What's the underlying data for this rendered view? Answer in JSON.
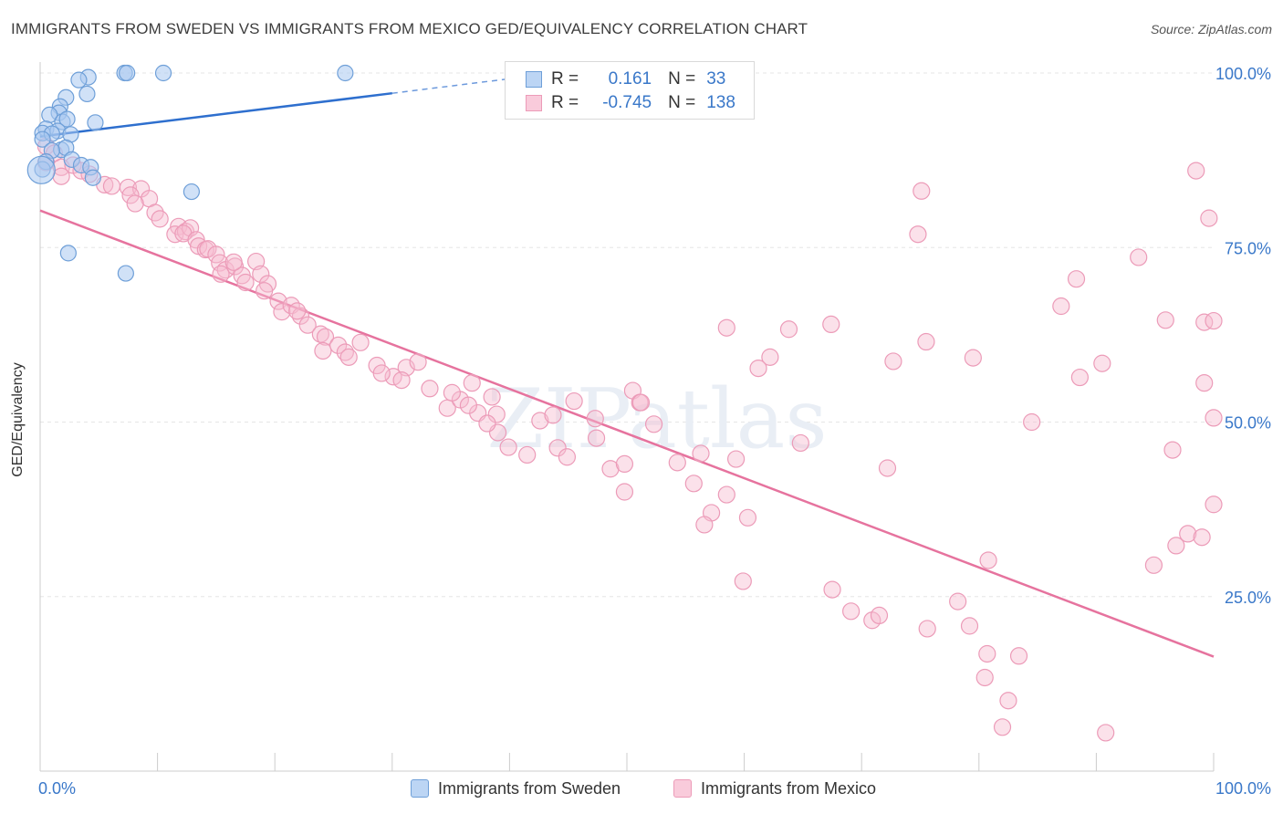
{
  "title": "IMMIGRANTS FROM SWEDEN VS IMMIGRANTS FROM MEXICO GED/EQUIVALENCY CORRELATION CHART",
  "source": "Source: ZipAtlas.com",
  "legend_top": {
    "rows": [
      {
        "r_label": "R =",
        "r_value": "0.161",
        "n_label": "N =",
        "n_value": "33"
      },
      {
        "r_label": "R =",
        "r_value": "-0.745",
        "n_label": "N =",
        "n_value": "138"
      }
    ]
  },
  "colors": {
    "sweden_fill": "#a9c8f0",
    "sweden_stroke": "#6e9fd8",
    "sweden_line": "#2e6fce",
    "mexico_fill": "#f7bdd0",
    "mexico_stroke": "#ec9bb8",
    "mexico_line": "#e6739e",
    "tick_label": "#3a78c9",
    "grid": "#e6e6e6"
  },
  "chart_data": {
    "type": "scatter",
    "ylabel": "GED/Equivalency",
    "xlim": [
      0,
      100
    ],
    "ylim": [
      0,
      100
    ],
    "x_tick_labels": [
      {
        "x": 0,
        "label": "0.0%"
      },
      {
        "x": 100,
        "label": "100.0%"
      }
    ],
    "y_tick_labels": [
      {
        "y": 25,
        "label": "25.0%"
      },
      {
        "y": 50,
        "label": "50.0%"
      },
      {
        "y": 75,
        "label": "75.0%"
      },
      {
        "y": 100,
        "label": "100.0%"
      }
    ],
    "grid": true,
    "series": [
      {
        "name": "Immigrants from Sweden",
        "trend": {
          "x0": 0,
          "y0": 90.9,
          "x1": 30,
          "y1": 97.1,
          "dashed_to_x": 43,
          "dashed_to_y": 99.8
        },
        "points": [
          [
            7.2,
            100
          ],
          [
            7.4,
            100
          ],
          [
            10.5,
            100
          ],
          [
            26,
            100
          ],
          [
            4.1,
            99.4
          ],
          [
            3.3,
            99
          ],
          [
            2.2,
            96.5
          ],
          [
            4,
            97
          ],
          [
            1.7,
            95.2
          ],
          [
            1.6,
            94.3
          ],
          [
            0.8,
            94
          ],
          [
            1.9,
            93
          ],
          [
            2.3,
            93.4
          ],
          [
            4.7,
            92.9
          ],
          [
            0.5,
            92
          ],
          [
            1.5,
            91.7
          ],
          [
            0.2,
            91.4
          ],
          [
            1,
            91.3
          ],
          [
            2.6,
            91.2
          ],
          [
            0.2,
            90.5
          ],
          [
            1.8,
            89
          ],
          [
            2.2,
            89.3
          ],
          [
            1,
            88.9
          ],
          [
            2.7,
            87.6
          ],
          [
            0.5,
            87.3
          ],
          [
            3.5,
            86.8
          ],
          [
            4.3,
            86.5
          ],
          [
            0.2,
            86.2
          ],
          [
            4.5,
            85
          ],
          [
            12.9,
            83
          ],
          [
            2.4,
            74.2
          ],
          [
            7.3,
            71.3
          ],
          [
            0.1,
            86.1
          ]
        ]
      },
      {
        "name": "Immigrants from Mexico",
        "trend": {
          "x0": 0,
          "y0": 80.3,
          "x1": 100,
          "y1": 16.4
        },
        "points": [
          [
            0.5,
            89.5
          ],
          [
            1.2,
            88.5
          ],
          [
            0.5,
            87.2
          ],
          [
            1.8,
            86.5
          ],
          [
            2.8,
            86.8
          ],
          [
            3.5,
            86
          ],
          [
            4.2,
            85.5
          ],
          [
            1.8,
            85.2
          ],
          [
            5.5,
            84
          ],
          [
            6.1,
            83.8
          ],
          [
            7.5,
            83.6
          ],
          [
            8.6,
            83.4
          ],
          [
            7.7,
            82.5
          ],
          [
            9.3,
            82
          ],
          [
            8.1,
            81.3
          ],
          [
            9.8,
            80
          ],
          [
            10.2,
            79.1
          ],
          [
            11.8,
            78
          ],
          [
            11.5,
            76.9
          ],
          [
            12.4,
            77.3
          ],
          [
            12.8,
            77.8
          ],
          [
            12.2,
            77
          ],
          [
            13.3,
            76.1
          ],
          [
            13.5,
            75.2
          ],
          [
            14.1,
            74.7
          ],
          [
            14.3,
            74.8
          ],
          [
            15,
            74
          ],
          [
            15.3,
            72.8
          ],
          [
            15.8,
            71.8
          ],
          [
            16.6,
            72.3
          ],
          [
            15.4,
            71.2
          ],
          [
            17.2,
            71
          ],
          [
            16.5,
            72.9
          ],
          [
            18.4,
            73
          ],
          [
            18.8,
            71.2
          ],
          [
            19.4,
            69.8
          ],
          [
            17.5,
            70
          ],
          [
            19.1,
            68.8
          ],
          [
            20.3,
            67.3
          ],
          [
            20.6,
            65.8
          ],
          [
            21.4,
            66.7
          ],
          [
            22.2,
            65.2
          ],
          [
            22.8,
            63.9
          ],
          [
            21.9,
            65.9
          ],
          [
            23.9,
            62.6
          ],
          [
            24.3,
            62.2
          ],
          [
            25.4,
            61
          ],
          [
            24.1,
            60.2
          ],
          [
            26,
            60
          ],
          [
            27.3,
            61.4
          ],
          [
            28.7,
            58.1
          ],
          [
            26.3,
            59.3
          ],
          [
            30.1,
            56.5
          ],
          [
            29.1,
            57
          ],
          [
            31.2,
            57.8
          ],
          [
            30.8,
            56
          ],
          [
            32.2,
            58.6
          ],
          [
            33.2,
            54.8
          ],
          [
            34.7,
            52
          ],
          [
            35.8,
            53.2
          ],
          [
            37.3,
            51.3
          ],
          [
            36.5,
            52.4
          ],
          [
            35.1,
            54.2
          ],
          [
            36.8,
            55.6
          ],
          [
            38.5,
            53.6
          ],
          [
            38.9,
            51.1
          ],
          [
            39,
            48.5
          ],
          [
            38.1,
            49.8
          ],
          [
            39.9,
            46.4
          ],
          [
            41.5,
            45.3
          ],
          [
            42.6,
            50.2
          ],
          [
            43.7,
            51
          ],
          [
            44.1,
            46.3
          ],
          [
            44.9,
            45
          ],
          [
            47.3,
            50.5
          ],
          [
            45.5,
            53
          ],
          [
            48.6,
            43.3
          ],
          [
            47.4,
            47.7
          ],
          [
            49.8,
            40
          ],
          [
            50.5,
            54.5
          ],
          [
            51.1,
            52.8
          ],
          [
            49.8,
            44
          ],
          [
            51.2,
            52.8
          ],
          [
            52.3,
            49.7
          ],
          [
            54.3,
            44.2
          ],
          [
            55.7,
            41.2
          ],
          [
            57.2,
            37
          ],
          [
            56.3,
            45.5
          ],
          [
            56.6,
            35.3
          ],
          [
            58.5,
            39.6
          ],
          [
            59.3,
            44.7
          ],
          [
            61.2,
            57.7
          ],
          [
            58.5,
            63.5
          ],
          [
            60.3,
            36.3
          ],
          [
            59.9,
            27.2
          ],
          [
            62.2,
            59.3
          ],
          [
            64.8,
            47
          ],
          [
            63.8,
            63.3
          ],
          [
            67.4,
            64
          ],
          [
            69.1,
            22.9
          ],
          [
            67.5,
            26
          ],
          [
            70.9,
            21.6
          ],
          [
            71.5,
            22.3
          ],
          [
            75.5,
            61.5
          ],
          [
            72.7,
            58.7
          ],
          [
            72.2,
            43.4
          ],
          [
            75.6,
            20.4
          ],
          [
            78.2,
            24.3
          ],
          [
            79.2,
            20.8
          ],
          [
            80.5,
            13.4
          ],
          [
            80.8,
            30.2
          ],
          [
            80.7,
            16.8
          ],
          [
            82,
            6.3
          ],
          [
            82.5,
            10.1
          ],
          [
            83.4,
            16.5
          ],
          [
            88.3,
            70.5
          ],
          [
            84.5,
            50
          ],
          [
            87,
            66.6
          ],
          [
            88.6,
            56.4
          ],
          [
            90.5,
            58.4
          ],
          [
            74.8,
            76.9
          ],
          [
            75.1,
            83.1
          ],
          [
            79.5,
            59.2
          ],
          [
            90.8,
            5.5
          ],
          [
            93.6,
            73.6
          ],
          [
            94.9,
            29.5
          ],
          [
            96.5,
            46
          ],
          [
            96.8,
            32.3
          ],
          [
            97.8,
            34
          ],
          [
            99,
            33.5
          ],
          [
            95.9,
            64.6
          ],
          [
            99.2,
            64.3
          ],
          [
            99.6,
            79.2
          ],
          [
            100,
            64.5
          ],
          [
            100,
            50.6
          ],
          [
            100,
            38.2
          ],
          [
            98.5,
            86
          ],
          [
            99.2,
            55.6
          ]
        ]
      }
    ]
  },
  "bottom_legend": {
    "sweden": "Immigrants from Sweden",
    "mexico": "Immigrants from Mexico"
  },
  "watermark": "ZIPatlas"
}
